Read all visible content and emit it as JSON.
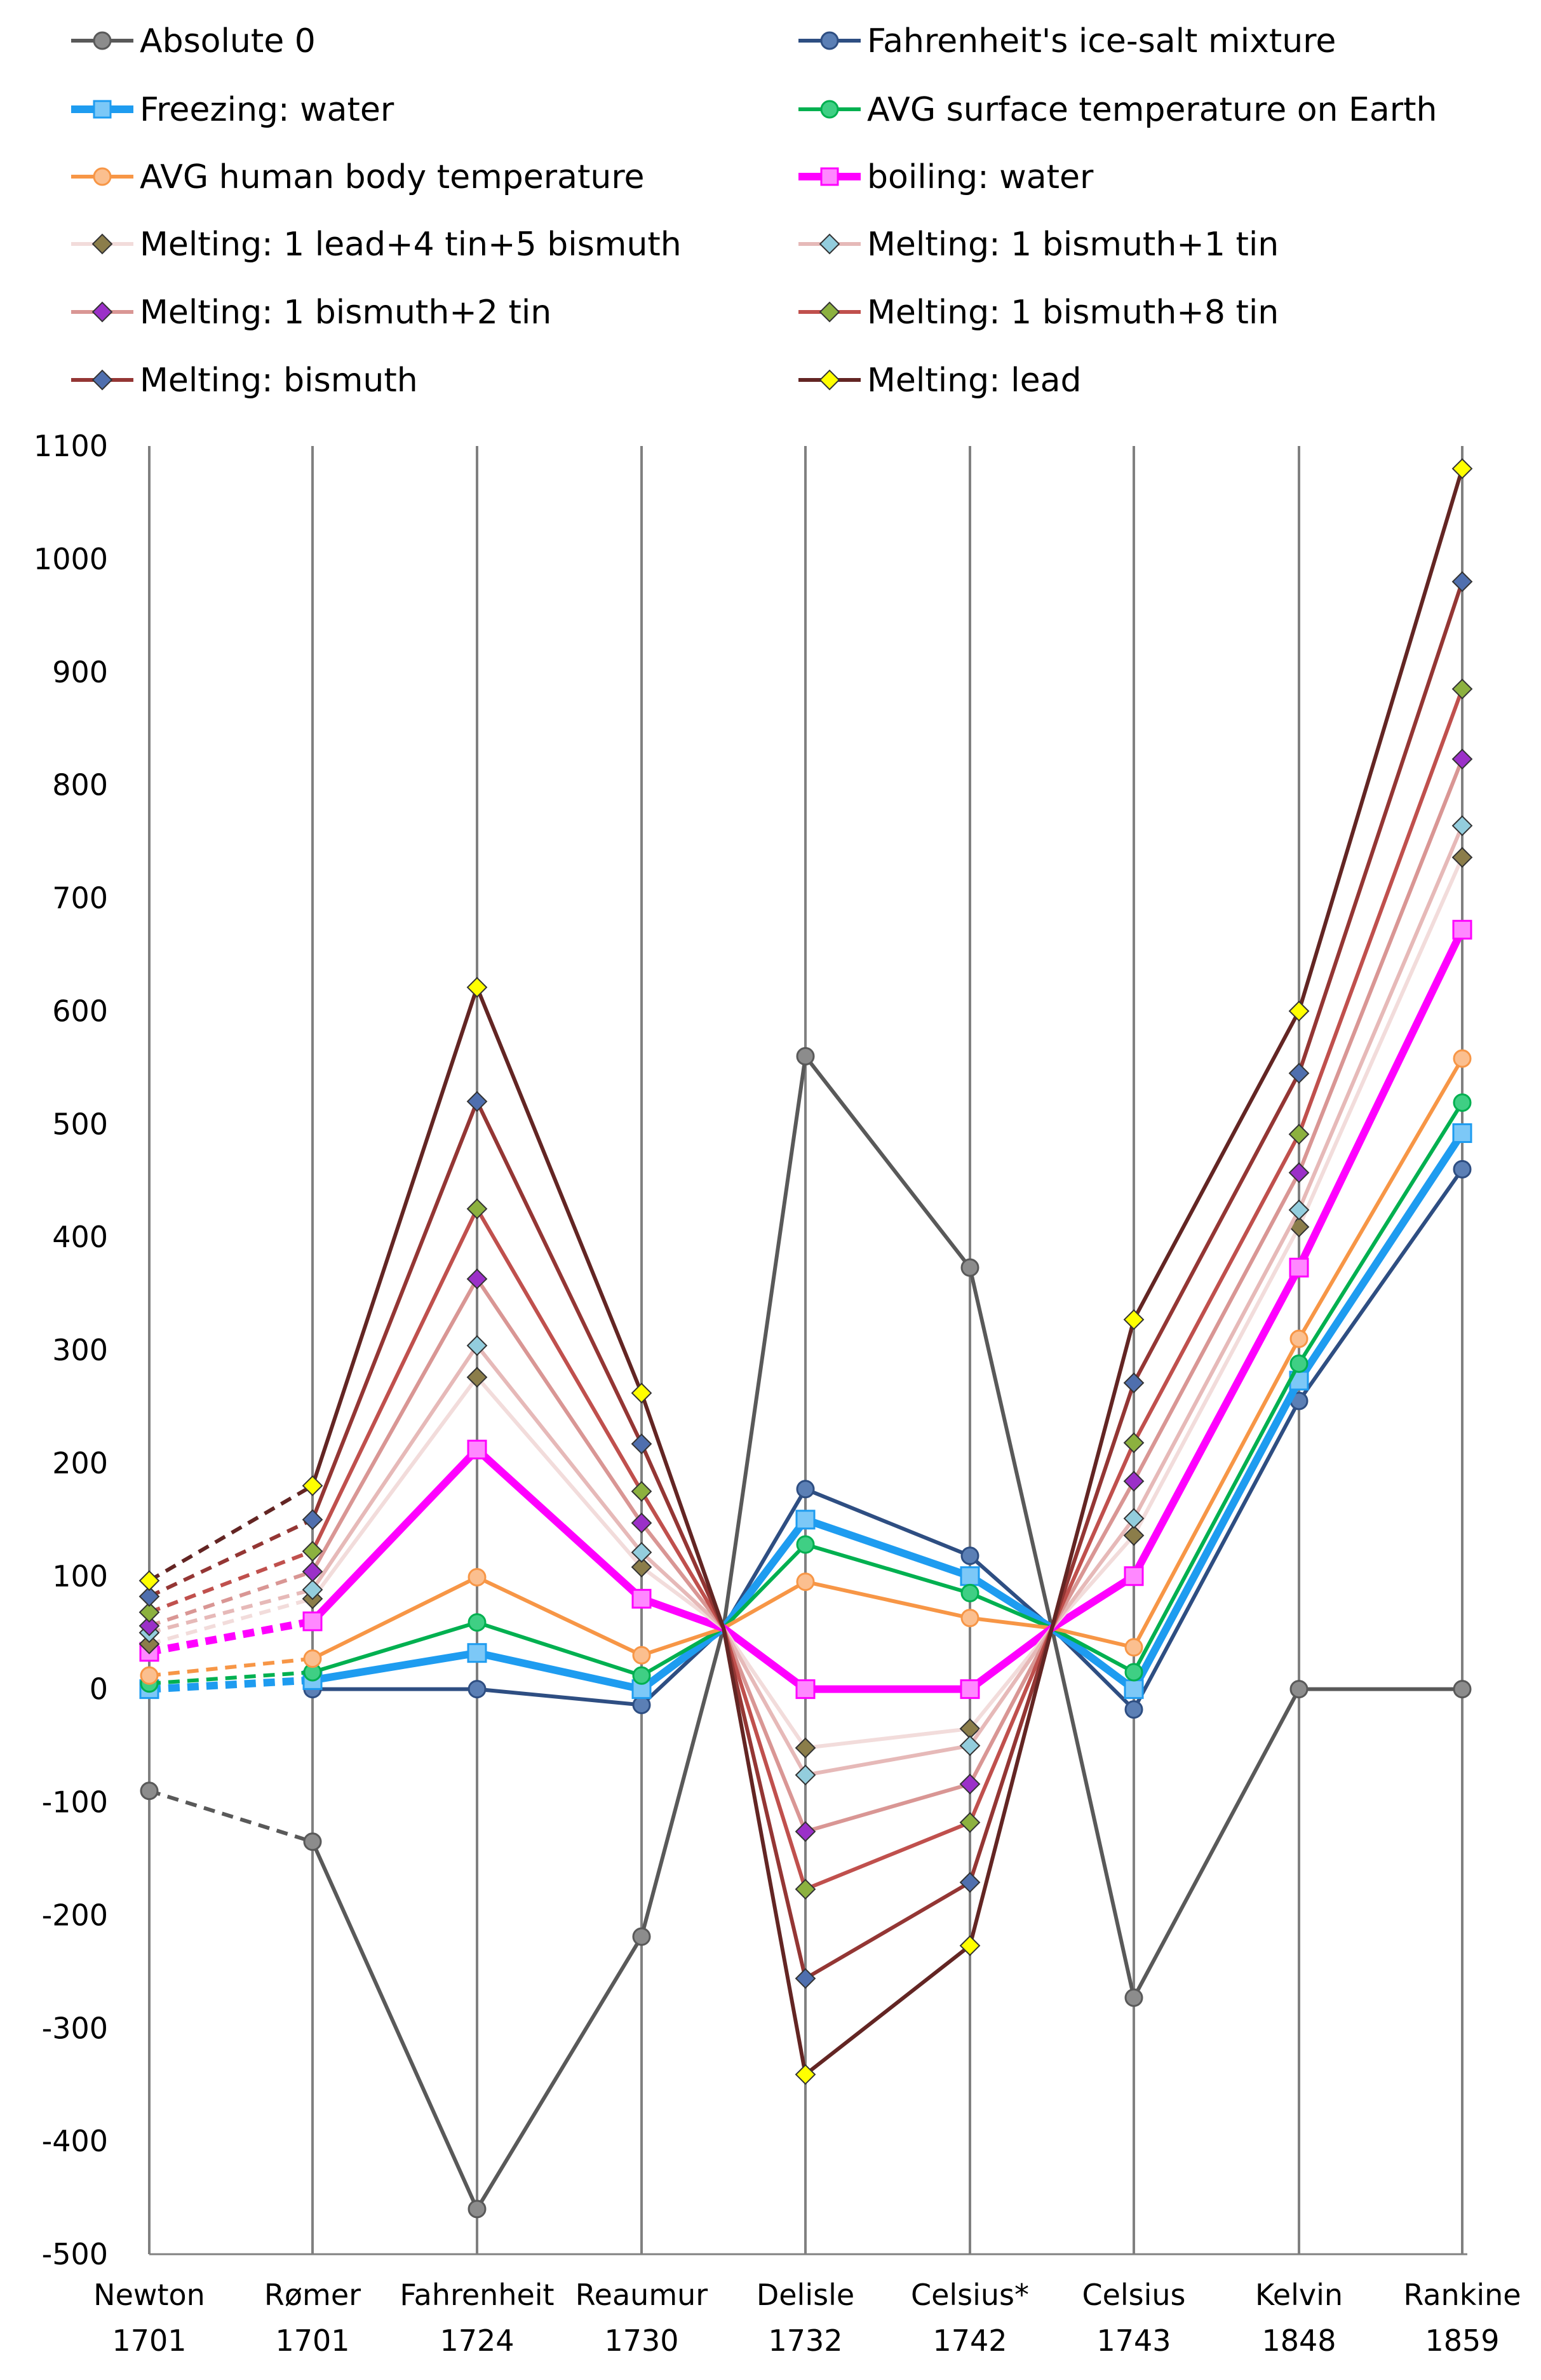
{
  "chart_data": {
    "type": "line",
    "ylim": [
      -500,
      1100
    ],
    "yticks": [
      "1100",
      "1000",
      "900",
      "800",
      "700",
      "600",
      "500",
      "400",
      "300",
      "200",
      "100",
      "0",
      "-100",
      "-200",
      "-300",
      "-400",
      "-500"
    ],
    "grid": "vertical lines at each category",
    "legend_position": "top",
    "categories": [
      {
        "name": "Newton",
        "year": "1701"
      },
      {
        "name": "Rømer",
        "year": "1701"
      },
      {
        "name": "Fahrenheit",
        "year": "1724"
      },
      {
        "name": "Reaumur",
        "year": "1730"
      },
      {
        "name": "Delisle",
        "year": "1732"
      },
      {
        "name": "Celsius*",
        "year": "1742"
      },
      {
        "name": "Celsius",
        "year": "1743"
      },
      {
        "name": "Kelvin",
        "year": "1848"
      },
      {
        "name": "Rankine",
        "year": "1859"
      }
    ],
    "series": [
      {
        "name": "Absolute 0",
        "color": "#595959",
        "marker": "circle",
        "width": 6,
        "fill": "#8c8c8c",
        "values": [
          -90,
          -135,
          -460,
          -219,
          560,
          373,
          -273,
          0,
          0
        ]
      },
      {
        "name": "Fahrenheit's ice-salt mixture",
        "color": "#2e4e82",
        "marker": "circle",
        "width": 6,
        "fill": "#5b7fb5",
        "values": [
          null,
          0,
          0,
          -14,
          177,
          118,
          -18,
          255,
          460
        ]
      },
      {
        "name": "Freezing: water",
        "color": "#1e9cf0",
        "marker": "square",
        "width": 12,
        "fill": "#7cc8f7",
        "values": [
          0,
          8,
          32,
          0,
          150,
          100,
          0,
          273,
          492
        ]
      },
      {
        "name": "AVG surface temperature on Earth",
        "color": "#00b050",
        "marker": "circle",
        "width": 6,
        "fill": "#3fcf84",
        "values": [
          5,
          15,
          59,
          12,
          128,
          85,
          15,
          288,
          519
        ]
      },
      {
        "name": "AVG human body temperature",
        "color": "#f79646",
        "marker": "circle",
        "width": 6,
        "fill": "#fbbf8f",
        "values": [
          12,
          27,
          99,
          30,
          95,
          63,
          37,
          310,
          558
        ]
      },
      {
        "name": "boiling: water",
        "color": "#ff00ff",
        "marker": "square",
        "width": 12,
        "fill": "#ff88ff",
        "values": [
          33,
          60,
          212,
          80,
          0,
          0,
          100,
          373,
          672
        ]
      },
      {
        "name": "Melting: 1 lead+4 tin+5 bismuth",
        "color": "#f2dcdb",
        "marker": "diamond",
        "width": 6,
        "fill": "#8b7d4a",
        "values": [
          40,
          80,
          276,
          108,
          -52,
          -35,
          136,
          409,
          736
        ]
      },
      {
        "name": "Melting: 1 bismuth+1 tin",
        "color": "#e6b9b8",
        "marker": "diamond",
        "width": 6,
        "fill": "#93cddd",
        "values": [
          50,
          88,
          304,
          121,
          -76,
          -50,
          151,
          424,
          764
        ]
      },
      {
        "name": "Melting: 1 bismuth+2 tin",
        "color": "#d99694",
        "marker": "diamond",
        "width": 6,
        "fill": "#9b30c8",
        "values": [
          56,
          104,
          363,
          147,
          -126,
          -84,
          184,
          457,
          823
        ]
      },
      {
        "name": "Melting: 1 bismuth+8 tin",
        "color": "#c0504d",
        "marker": "diamond",
        "width": 6,
        "fill": "#8cb13f",
        "values": [
          68,
          122,
          425,
          175,
          -177,
          -118,
          218,
          491,
          885
        ]
      },
      {
        "name": "Melting: bismuth",
        "color": "#943634",
        "marker": "diamond",
        "width": 6,
        "fill": "#4f6fae",
        "values": [
          82,
          150,
          520,
          217,
          -256,
          -171,
          271,
          545,
          980
        ]
      },
      {
        "name": "Melting: lead",
        "color": "#632523",
        "marker": "diamond",
        "width": 6,
        "fill": "#ffff00",
        "values": [
          96,
          180,
          621,
          262,
          -341,
          -227,
          327,
          600,
          1080
        ]
      }
    ],
    "convergence_value": 54
  }
}
